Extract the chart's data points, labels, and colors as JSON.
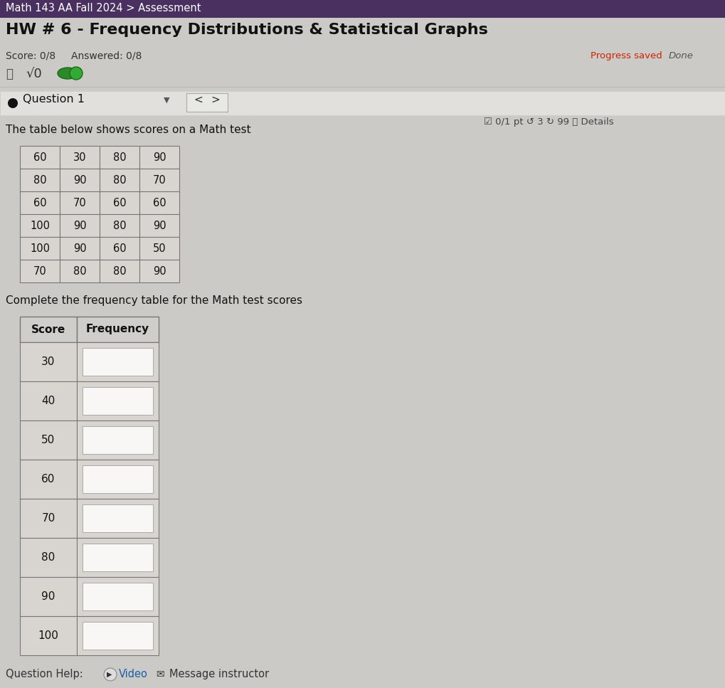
{
  "bg_color": "#cccac6",
  "top_bar_color": "#4a3060",
  "top_bar_text": "Math 143 AA Fall 2024 > Assessment",
  "top_bar_text_color": "#ffffff",
  "title": "HW # 6 - Frequency Distributions & Statistical Graphs",
  "title_color": "#111111",
  "score_text": "Score: 0/8",
  "answered_text": "Answered: 0/8",
  "progress_saved_text": "Progress saved",
  "done_text": "Done",
  "progress_color": "#cc2200",
  "sqrt_text": "√0",
  "question_label": "Question 1",
  "badge_text": "☑ 0/1 pt ↺ 3 ↻ 99 ⓘ Details",
  "badge_color": "#444444",
  "description": "The table below shows scores on a Math test",
  "data_table": [
    [
      60,
      30,
      80,
      90
    ],
    [
      80,
      90,
      80,
      70
    ],
    [
      60,
      70,
      60,
      60
    ],
    [
      100,
      90,
      80,
      90
    ],
    [
      100,
      90,
      60,
      50
    ],
    [
      70,
      80,
      80,
      90
    ]
  ],
  "freq_instruction": "Complete the frequency table for the Math test scores",
  "freq_scores": [
    30,
    40,
    50,
    60,
    70,
    80,
    90,
    100
  ],
  "freq_header": [
    "Score",
    "Frequency"
  ],
  "footer_video": "► Video",
  "footer_msg": "✉ Message instructor",
  "footer_label": "Question Help:",
  "table_border_color": "#777777",
  "cell_bg": "#d8d5d1",
  "input_cell_bg": "#f0efed",
  "header_bg": "#d0ceca",
  "white_input": "#f8f7f5"
}
